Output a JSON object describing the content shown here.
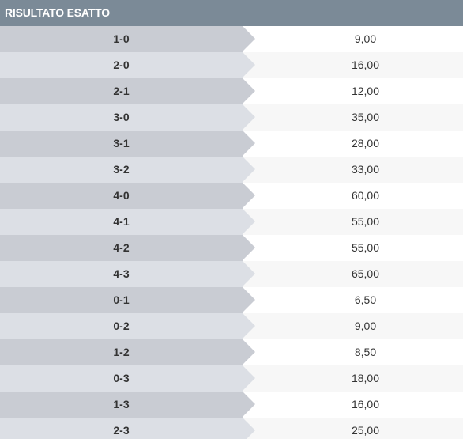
{
  "header": {
    "title": "RISULTATO ESATTO"
  },
  "rows": [
    {
      "score": "1-0",
      "odds": "9,00"
    },
    {
      "score": "2-0",
      "odds": "16,00"
    },
    {
      "score": "2-1",
      "odds": "12,00"
    },
    {
      "score": "3-0",
      "odds": "35,00"
    },
    {
      "score": "3-1",
      "odds": "28,00"
    },
    {
      "score": "3-2",
      "odds": "33,00"
    },
    {
      "score": "4-0",
      "odds": "60,00"
    },
    {
      "score": "4-1",
      "odds": "55,00"
    },
    {
      "score": "4-2",
      "odds": "55,00"
    },
    {
      "score": "4-3",
      "odds": "65,00"
    },
    {
      "score": "0-1",
      "odds": "6,50"
    },
    {
      "score": "0-2",
      "odds": "9,00"
    },
    {
      "score": "1-2",
      "odds": "8,50"
    },
    {
      "score": "0-3",
      "odds": "18,00"
    },
    {
      "score": "1-3",
      "odds": "16,00"
    },
    {
      "score": "2-3",
      "odds": "25,00"
    }
  ]
}
